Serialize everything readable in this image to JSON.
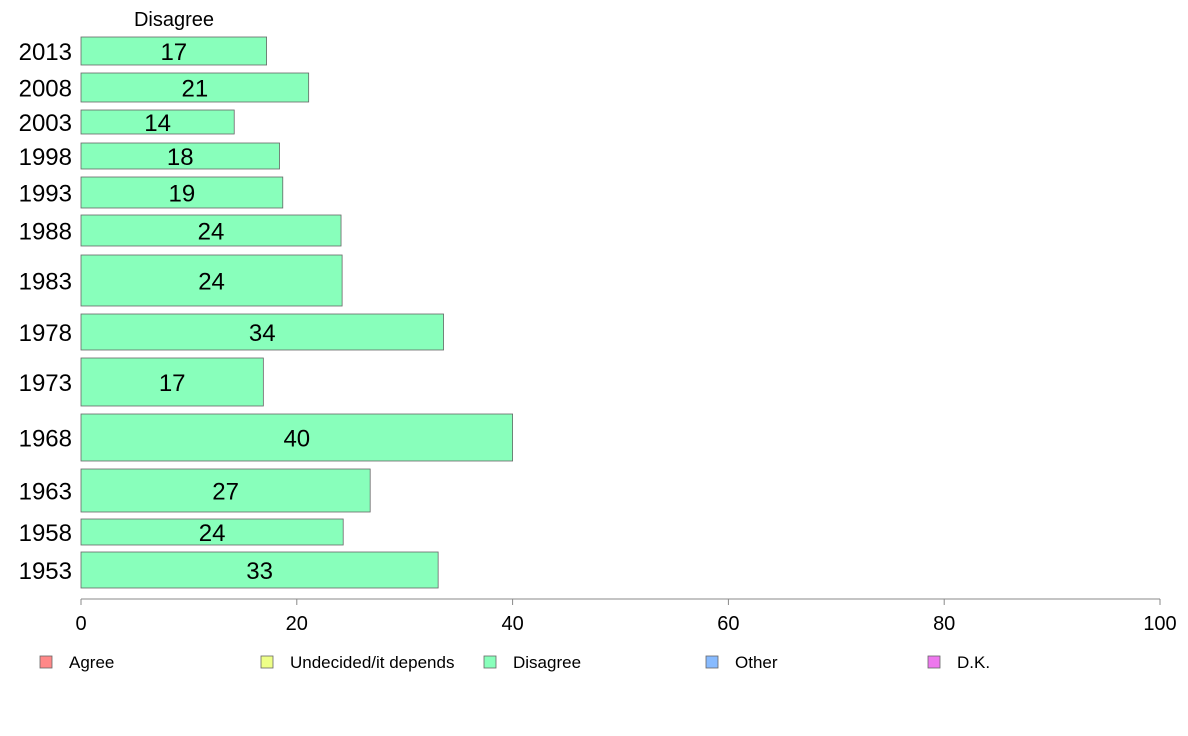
{
  "chart_data": {
    "type": "bar",
    "orientation": "horizontal",
    "title": "Disagree",
    "categories": [
      "2013",
      "2008",
      "2003",
      "1998",
      "1993",
      "1988",
      "1983",
      "1978",
      "1973",
      "1968",
      "1963",
      "1958",
      "1953"
    ],
    "series": [
      {
        "name": "Disagree",
        "color": "#88ffbb",
        "values": [
          17.2,
          21.1,
          14.2,
          18.4,
          18.7,
          24.1,
          24.2,
          33.6,
          16.9,
          40.0,
          26.8,
          24.3,
          33.1
        ],
        "labels": [
          "17",
          "21",
          "14",
          "18",
          "19",
          "24",
          "24",
          "34",
          "17",
          "40",
          "27",
          "24",
          "33"
        ]
      }
    ],
    "xlim": [
      0,
      100
    ],
    "xticks": [
      0,
      20,
      40,
      60,
      80,
      100
    ],
    "xlabel": "",
    "ylabel": "",
    "grid": false,
    "legend": {
      "placement": "bottom",
      "items": [
        {
          "label": "Agree",
          "color": "#ff8888"
        },
        {
          "label": "Undecided/it depends",
          "color": "#eeff88"
        },
        {
          "label": "Disagree",
          "color": "#88ffbb"
        },
        {
          "label": "Other",
          "color": "#88bbff"
        },
        {
          "label": "D.K.",
          "color": "#ee77ee"
        }
      ]
    }
  }
}
